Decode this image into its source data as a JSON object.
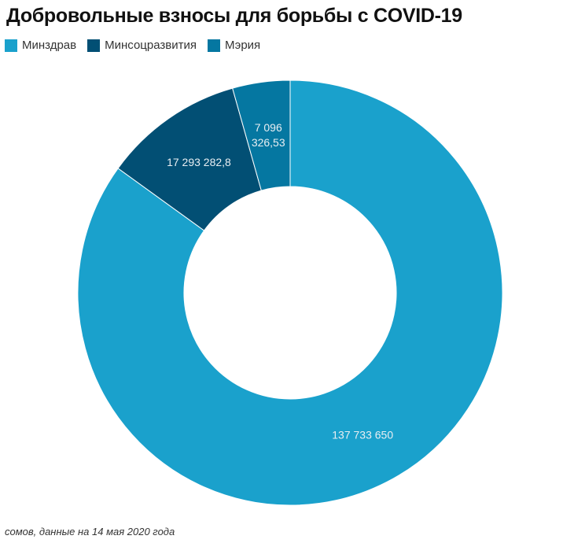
{
  "chart_data": {
    "type": "pie",
    "donut": true,
    "title": "Добровольные взносы для борьбы с COVID-19",
    "legend_position": "top-left",
    "series": [
      {
        "name": "Минздрав",
        "value": 137733650,
        "label": "137 733 650",
        "label_lines": [
          "137 733 650"
        ],
        "color": "#1aa1cc"
      },
      {
        "name": "Минсоцразвития",
        "value": 17293282.8,
        "label": "17 293 282,8",
        "label_lines": [
          "17 293 282,8"
        ],
        "color": "#024f74"
      },
      {
        "name": "Мэрия",
        "value": 7096326.53,
        "label": "7 096 326,53",
        "label_lines": [
          "7 096",
          "326,53"
        ],
        "color": "#0577a1"
      }
    ],
    "note": "сомов, данные на 14 мая 2020 года"
  }
}
